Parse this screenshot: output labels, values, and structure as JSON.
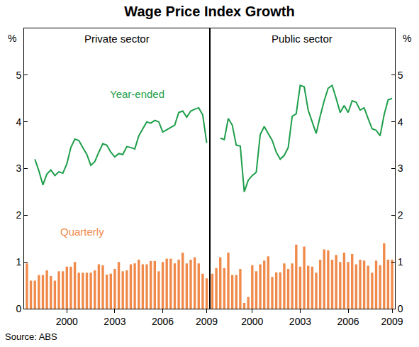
{
  "title": "Wage Price Index Growth",
  "source": "Source: ABS",
  "chart_data": [
    {
      "type": "combo",
      "title": "Private sector",
      "ylabel": "%",
      "categories": [
        null,
        null,
        null,
        null,
        null,
        null,
        null,
        null,
        null,
        null,
        "2000",
        null,
        null,
        null,
        null,
        null,
        null,
        null,
        null,
        null,
        null,
        null,
        "2003",
        null,
        null,
        null,
        null,
        null,
        null,
        null,
        null,
        null,
        null,
        null,
        "2006",
        null,
        null,
        null,
        null,
        null,
        null,
        null,
        null,
        null,
        null,
        "2009"
      ],
      "ylim": [
        0,
        6
      ],
      "yticks": [
        0,
        1,
        2,
        3,
        4,
        5
      ],
      "grid": false,
      "series": [
        {
          "name": "Year-ended",
          "type": "line",
          "color": "#1e9e4a",
          "values": [
            null,
            null,
            3.2,
            2.95,
            2.65,
            2.88,
            2.97,
            2.85,
            2.93,
            2.9,
            3.1,
            3.45,
            3.63,
            3.6,
            3.45,
            3.3,
            3.07,
            3.15,
            3.35,
            3.53,
            3.5,
            3.35,
            3.25,
            3.32,
            3.3,
            3.47,
            3.45,
            3.42,
            3.7,
            3.85,
            4.0,
            3.97,
            4.03,
            4.0,
            3.78,
            3.83,
            3.88,
            3.93,
            4.2,
            4.23,
            4.1,
            4.23,
            4.27,
            4.3,
            4.15,
            3.55
          ]
        },
        {
          "name": "Quarterly",
          "type": "bar",
          "color": "#f08a4b",
          "values": [
            0.97,
            0.6,
            0.6,
            0.72,
            0.72,
            0.82,
            0.7,
            0.6,
            0.8,
            0.8,
            0.9,
            0.9,
            1.0,
            0.77,
            0.77,
            0.77,
            0.77,
            0.82,
            0.95,
            0.93,
            0.73,
            0.75,
            0.85,
            1.0,
            0.8,
            0.82,
            0.95,
            0.97,
            1.05,
            0.95,
            0.95,
            1.02,
            1.02,
            0.8,
            1.0,
            1.07,
            1.07,
            0.97,
            1.05,
            1.2,
            0.97,
            1.05,
            1.1,
            0.97,
            0.75,
            0.65
          ]
        }
      ]
    },
    {
      "type": "combo",
      "title": "Public sector",
      "ylabel": "%",
      "categories": [
        null,
        null,
        null,
        null,
        null,
        null,
        null,
        null,
        null,
        null,
        "2000",
        null,
        null,
        null,
        null,
        null,
        null,
        null,
        null,
        null,
        null,
        null,
        "2003",
        null,
        null,
        null,
        null,
        null,
        null,
        null,
        null,
        null,
        null,
        null,
        "2006",
        null,
        null,
        null,
        null,
        null,
        null,
        null,
        null,
        null,
        null,
        "2009"
      ],
      "ylim": [
        0,
        6
      ],
      "yticks": [
        0,
        1,
        2,
        3,
        4,
        5
      ],
      "grid": false,
      "series": [
        {
          "type": "line",
          "color": "#1e9e4a",
          "values": [
            null,
            null,
            3.65,
            3.62,
            4.07,
            3.93,
            3.5,
            3.48,
            2.5,
            2.75,
            2.85,
            2.92,
            3.73,
            3.9,
            3.75,
            3.6,
            3.35,
            3.2,
            3.28,
            3.45,
            4.12,
            4.17,
            4.78,
            4.75,
            4.25,
            4.0,
            3.75,
            4.12,
            4.45,
            4.72,
            4.78,
            4.5,
            4.2,
            4.35,
            4.2,
            4.45,
            4.42,
            4.25,
            4.3,
            4.07,
            3.85,
            3.82,
            3.7,
            4.15,
            4.47,
            4.5
          ]
        },
        {
          "type": "bar",
          "color": "#f08a4b",
          "values": [
            0.75,
            0.87,
            1.1,
            0.87,
            1.2,
            0.72,
            0.72,
            0.85,
            0.12,
            0.25,
            0.93,
            0.8,
            0.95,
            1.03,
            1.12,
            0.68,
            0.78,
            0.78,
            0.97,
            0.85,
            0.97,
            1.37,
            0.9,
            1.33,
            0.92,
            0.9,
            0.77,
            1.05,
            1.27,
            1.25,
            1.05,
            1.15,
            1.0,
            1.2,
            1.0,
            1.17,
            0.95,
            1.05,
            1.03,
            0.92,
            0.77,
            1.03,
            0.93,
            1.4,
            1.05,
            1.05
          ]
        }
      ]
    }
  ]
}
